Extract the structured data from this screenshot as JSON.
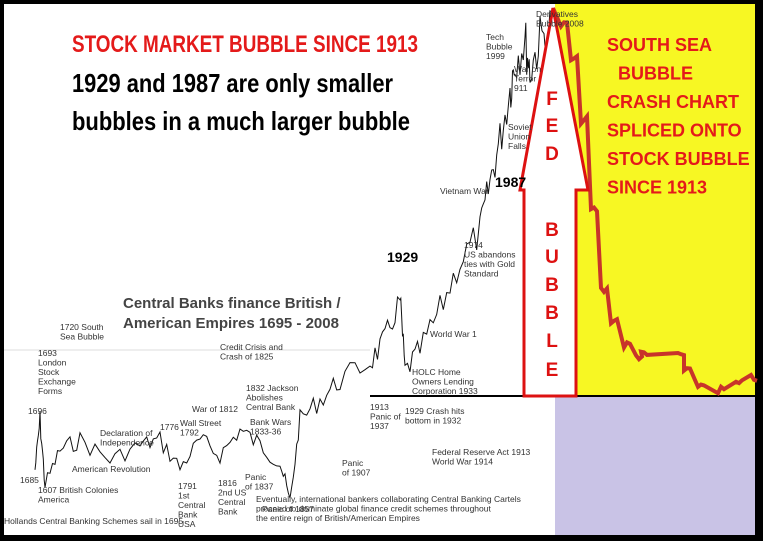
{
  "header": {
    "title": "STOCK MARKET BUBBLE SINCE 1913",
    "subtitle": [
      "1929 and 1987 are only smaller",
      "bubbles in a much larger bubble"
    ]
  },
  "side_note": [
    "SOUTH SEA",
    "BUBBLE",
    "CRASH CHART",
    "SPLICED ONTO",
    "STOCK BUBBLE",
    "SINCE 1913"
  ],
  "caption": [
    "Central Banks finance British /",
    "American Empires  1695 - 2008"
  ],
  "markers": [
    "1929",
    "1987"
  ],
  "arrow_letters": [
    "F",
    "E",
    "D",
    "B",
    "U",
    "B",
    "B",
    "L",
    "E"
  ],
  "annotations": [
    [
      "1720 South",
      "Sea Bubble"
    ],
    [
      "1693",
      "London",
      "Stock",
      "Exchange",
      "Forms"
    ],
    [
      "1696"
    ],
    [
      "1685"
    ],
    [
      "1607 British Colonies",
      "America"
    ],
    [
      "American Revolution"
    ],
    [
      "Declaration of",
      "Independence"
    ],
    [
      "1776"
    ],
    [
      "Wall Street",
      "1792"
    ],
    [
      "War of 1812"
    ],
    [
      "1791",
      "1st",
      "Central",
      "Bank",
      "USA"
    ],
    [
      "1816",
      "2nd US",
      "Central",
      "Bank"
    ],
    [
      "Credit Crisis and",
      "Crash of 1825"
    ],
    [
      "1832 Jackson",
      "Abolishes",
      "Central Bank"
    ],
    [
      "Bank Wars",
      "1833-36"
    ],
    [
      "Panic",
      "of 1837"
    ],
    [
      "Panic of 1857"
    ],
    [
      "Panic",
      "of 1907"
    ],
    [
      "1913",
      "Panic of",
      "1937"
    ],
    [
      "1929 Crash hits",
      "bottom in 1932"
    ],
    [
      "HOLC Home",
      "Owners Lending",
      "Corporation 1933"
    ],
    [
      "Federal Reserve Act 1913",
      "World War    1914"
    ],
    [
      "World War 1"
    ],
    [
      "1974",
      "US abandons",
      "ties with Gold",
      "Standard"
    ],
    [
      "Vietnam War"
    ],
    [
      "Soviet",
      "Union",
      "Falls"
    ],
    [
      "911"
    ],
    [
      "War on",
      "Terror"
    ],
    [
      "Tech",
      "Bubble",
      "1999"
    ],
    [
      "Derivatives",
      "Bubble 2008"
    ],
    [
      "Hollands Central Banking Schemes sail in 1695"
    ],
    [
      "Eventually, international bankers collaborating Central Banking Cartels",
      "proceed to dominate global finance credit schemes throughout",
      "the entire reign of British/American Empires"
    ]
  ]
}
